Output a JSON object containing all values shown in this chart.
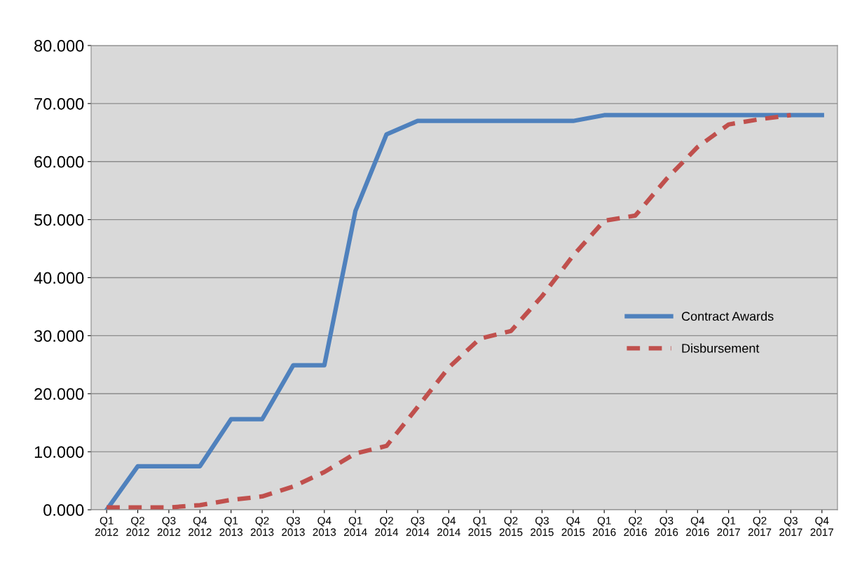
{
  "chart_data": {
    "type": "line",
    "categories": [
      "Q1\n2012",
      "Q2\n2012",
      "Q3\n2012",
      "Q4\n2012",
      "Q1\n2013",
      "Q2\n2013",
      "Q3\n2013",
      "Q4\n2013",
      "Q1\n2014",
      "Q2\n2014",
      "Q3\n2014",
      "Q4\n2014",
      "Q1\n2015",
      "Q2\n2015",
      "Q3\n2015",
      "Q4\n2015",
      "Q1\n2016",
      "Q2\n2016",
      "Q3\n2016",
      "Q4\n2016",
      "Q1\n2017",
      "Q2\n2017",
      "Q3\n2017",
      "Q4\n2017"
    ],
    "series": [
      {
        "name": "Contract Awards",
        "color": "#4f81bd",
        "line_style": "solid",
        "values": [
          0,
          7.5,
          7.5,
          7.5,
          15.6,
          15.6,
          24.9,
          24.9,
          51.5,
          64.7,
          67,
          67,
          67,
          67,
          67,
          67,
          68,
          68,
          68,
          68,
          68,
          68,
          68,
          68
        ]
      },
      {
        "name": "Disbursement",
        "color": "#c0504d",
        "line_style": "dashed",
        "values": [
          0.4,
          0.4,
          0.4,
          0.8,
          1.7,
          2.3,
          4,
          6.5,
          9.7,
          11,
          17.7,
          24.5,
          29.5,
          30.8,
          36.8,
          43.8,
          49.8,
          50.7,
          57,
          62.5,
          66.4,
          67.3,
          68,
          null
        ]
      }
    ],
    "ylim": [
      0,
      80
    ],
    "yticks": [
      {
        "value": 0,
        "label": "0.000"
      },
      {
        "value": 10,
        "label": "10.000"
      },
      {
        "value": 20,
        "label": "20.000"
      },
      {
        "value": 30,
        "label": "30.000"
      },
      {
        "value": 40,
        "label": "40.000"
      },
      {
        "value": 50,
        "label": "50.000"
      },
      {
        "value": 60,
        "label": "60.000"
      },
      {
        "value": 70,
        "label": "70.000"
      },
      {
        "value": 80,
        "label": "80.000"
      }
    ],
    "grid": "y",
    "legend": "center right",
    "marker": "none"
  }
}
